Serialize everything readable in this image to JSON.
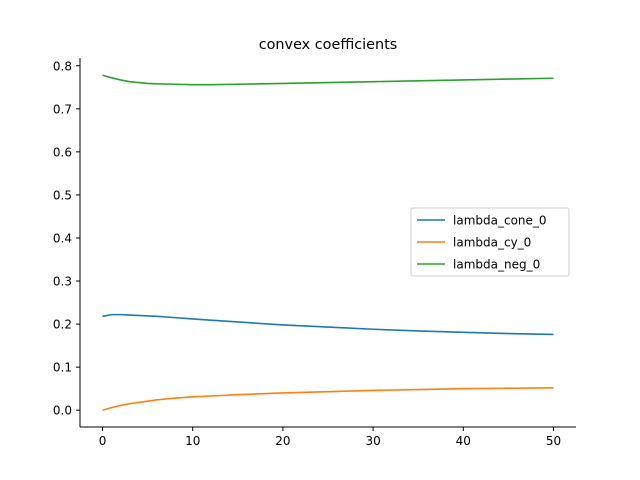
{
  "chart_data": {
    "type": "line",
    "title": "convex coefficients",
    "xlabel": "",
    "ylabel": "",
    "xlim": [
      -2.5,
      52.5
    ],
    "ylim": [
      -0.039,
      0.818
    ],
    "x_ticks": [
      0,
      10,
      20,
      30,
      40,
      50
    ],
    "x_tick_labels": [
      "0",
      "10",
      "20",
      "30",
      "40",
      "50"
    ],
    "y_ticks": [
      0.0,
      0.1,
      0.2,
      0.3,
      0.4,
      0.5,
      0.6,
      0.7,
      0.8
    ],
    "y_tick_labels": [
      "0.0",
      "0.1",
      "0.2",
      "0.3",
      "0.4",
      "0.5",
      "0.6",
      "0.7",
      "0.8"
    ],
    "grid": false,
    "legend_position": "center-right",
    "x": [
      0,
      1,
      2,
      3,
      4,
      5,
      6,
      8,
      10,
      12,
      15,
      20,
      25,
      30,
      35,
      40,
      45,
      50
    ],
    "series": [
      {
        "name": "lambda_cone_0",
        "color": "#1f77b4",
        "values": [
          0.218,
          0.222,
          0.222,
          0.221,
          0.22,
          0.219,
          0.218,
          0.215,
          0.212,
          0.209,
          0.205,
          0.198,
          0.193,
          0.188,
          0.184,
          0.181,
          0.178,
          0.176
        ]
      },
      {
        "name": "lambda_cy_0",
        "color": "#ff7f0e",
        "values": [
          0.0,
          0.006,
          0.011,
          0.015,
          0.018,
          0.021,
          0.024,
          0.028,
          0.031,
          0.033,
          0.036,
          0.04,
          0.043,
          0.046,
          0.048,
          0.05,
          0.051,
          0.052
        ]
      },
      {
        "name": "lambda_neg_0",
        "color": "#2ca02c",
        "values": [
          0.778,
          0.772,
          0.767,
          0.763,
          0.761,
          0.759,
          0.758,
          0.757,
          0.756,
          0.756,
          0.757,
          0.759,
          0.761,
          0.763,
          0.765,
          0.767,
          0.769,
          0.771
        ]
      }
    ]
  }
}
